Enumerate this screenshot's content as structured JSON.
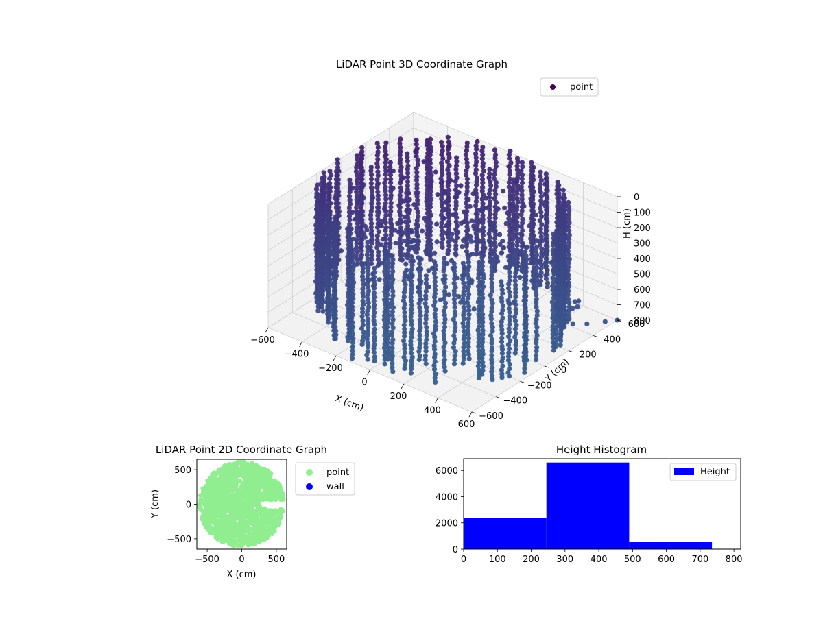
{
  "chart_data": [
    {
      "type": "scatter3d",
      "title": "LiDAR Point 3D Coordinate Graph",
      "xlabel": "X (cm)",
      "ylabel": "Y (cm)",
      "zlabel": "H (cm)",
      "xlim": [
        -600,
        600
      ],
      "ylim": [
        -600,
        600
      ],
      "zlim": [
        0,
        800
      ],
      "z_inverted": true,
      "x_ticks": [
        "−600",
        "−400",
        "−200",
        "0",
        "200",
        "400",
        "600"
      ],
      "y_ticks": [
        "−600",
        "−400",
        "−200",
        "0",
        "200",
        "400",
        "600"
      ],
      "z_ticks": [
        "0",
        "100",
        "200",
        "300",
        "400",
        "500",
        "600",
        "700",
        "800"
      ],
      "grid": true,
      "legend": {
        "placement": "upper-right",
        "entries": [
          {
            "name": "point",
            "color": "#440154"
          }
        ]
      },
      "colormap": "viridis",
      "shape": {
        "walls": "roughly cylindrical wall of points, radius about 600 cm, full height 0-800 cm",
        "outliers_near": [
          [
            600,
            350,
            700
          ],
          [
            600,
            500,
            760
          ],
          [
            600,
            600,
            800
          ]
        ]
      }
    },
    {
      "type": "scatter",
      "title": "LiDAR Point 2D Coordinate Graph",
      "xlabel": "X (cm)",
      "ylabel": "Y (cm)",
      "xlim": [
        -650,
        650
      ],
      "ylim": [
        -650,
        650
      ],
      "x_ticks": [
        "−500",
        "0",
        "500"
      ],
      "y_ticks": [
        "500",
        "0",
        "−500"
      ],
      "legend": {
        "placement": "outside-right",
        "entries": [
          {
            "name": "point",
            "color": "#90ee90"
          },
          {
            "name": "wall",
            "color": "#0000ff"
          }
        ]
      },
      "shape": "filled disk of points, radius about 620 cm, with a small gap near x 250-650, y -50..50"
    },
    {
      "type": "histogram",
      "title": "Height Histogram",
      "xlim": [
        0,
        820
      ],
      "ylim": [
        0,
        6900
      ],
      "x_ticks": [
        "0",
        "100",
        "200",
        "300",
        "400",
        "500",
        "600",
        "700",
        "800"
      ],
      "y_ticks": [
        "0",
        "2000",
        "4000",
        "6000"
      ],
      "bins": [
        {
          "start": 0,
          "end": 245,
          "count": 2400
        },
        {
          "start": 245,
          "end": 490,
          "count": 6600
        },
        {
          "start": 490,
          "end": 735,
          "count": 550
        }
      ],
      "color": "#0000ff",
      "legend": {
        "placement": "upper-right",
        "entries": [
          {
            "name": "Height",
            "color": "#0000ff"
          }
        ]
      }
    }
  ]
}
